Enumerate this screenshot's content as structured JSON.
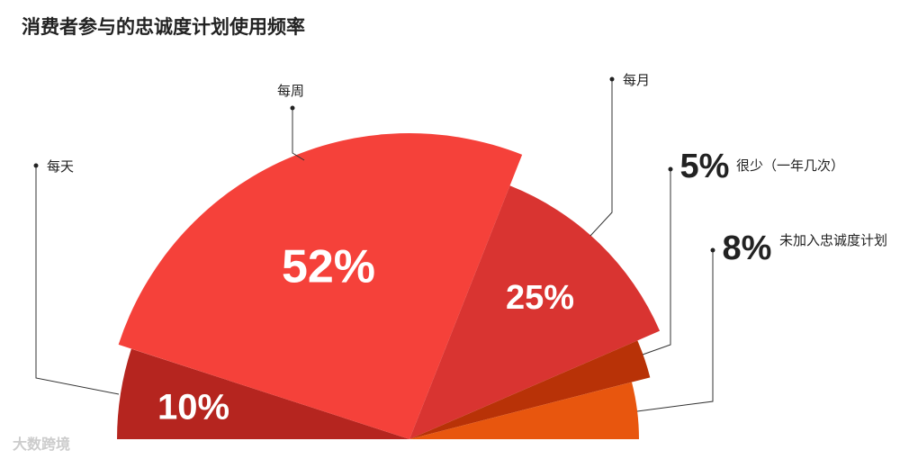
{
  "chart_data": {
    "type": "pie",
    "title": "消费者参与的忠诚度计划使用频率",
    "categories": [
      "每天",
      "每周",
      "每月",
      "很少（一年几次）",
      "未加入忠诚度计划"
    ],
    "values": [
      10,
      52,
      25,
      5,
      8
    ],
    "value_labels": [
      "10%",
      "52%",
      "25%",
      "5%",
      "8%"
    ],
    "colors": [
      "#b5251f",
      "#f5413a",
      "#d93431",
      "#b83207",
      "#e8560e"
    ],
    "watermark": "大数跨境"
  }
}
